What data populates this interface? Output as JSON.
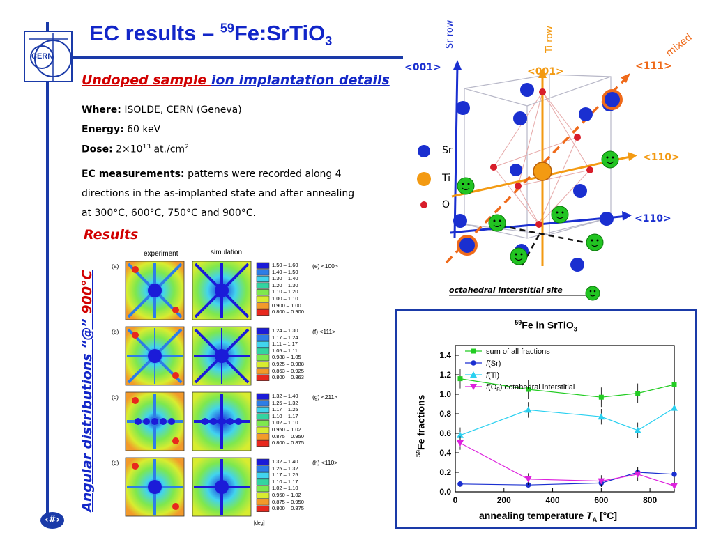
{
  "header": {
    "title_main": "EC results – ",
    "title_sup": "59",
    "title_iso": "Fe:SrTiO",
    "title_sub": "3",
    "logo_text": "CERN"
  },
  "subtitle": {
    "part1": "Undoped sample ",
    "part2": "ion implantation details"
  },
  "info": {
    "where_label": "Where:",
    "where_value": " ISOLDE, CERN (Geneva)",
    "energy_label": "Energy:",
    "energy_value": " 60 keV",
    "dose_label": "Dose:",
    "dose_value": " 2×10",
    "dose_exp": "13",
    "dose_unit": " at./cm",
    "dose_unit_exp": "2",
    "ec_label": "EC measurements:",
    "ec_line1": " patterns were recorded along 4",
    "ec_line2": "directions in the as-implanted state and after annealing",
    "ec_line3": "at 300°C, 600°C, 750°C and 900°C."
  },
  "results_heading": "Results",
  "vertical_label": {
    "part1": "Angular distributions “@” ",
    "part2": "900°C"
  },
  "page_number": "‹#›",
  "crystal": {
    "sr_row": "Sr row",
    "ti_row": "Ti row",
    "mixed": "mixed",
    "dir_001_blue": "<001>",
    "dir_001_orange": "<001>",
    "dir_111": "<111>",
    "dir_110_orange": "<110>",
    "dir_110_blue": "<110>",
    "legend": [
      "Sr",
      "Ti",
      "O"
    ],
    "site_label": "octahedral interstitial site",
    "colors": {
      "sr": "#1a2fd0",
      "ti": "#f39a12",
      "o": "#d81d2a",
      "mixed": "#ef6a1a",
      "site": "#22c422"
    }
  },
  "panels": {
    "col_experiment": "experiment",
    "col_simulation": "simulation",
    "deg_unit": "[deg]",
    "rows": [
      {
        "label": "(a)",
        "dir": "(e) <100>",
        "legend": [
          "1.50 – 1.60",
          "1.40 – 1.50",
          "1.30 – 1.40",
          "1.20 – 1.30",
          "1.10 – 1.20",
          "1.00 – 1.10",
          "0.900 – 1.00",
          "0.800 – 0.900"
        ]
      },
      {
        "label": "(b)",
        "dir": "(f) <111>",
        "legend": [
          "1.24 – 1.30",
          "1.17 – 1.24",
          "1.11 – 1.17",
          "1.05 – 1.11",
          "0.988 – 1.05",
          "0.925 – 0.988",
          "0.863 – 0.925",
          "0.800 – 0.863"
        ]
      },
      {
        "label": "(c)",
        "dir": "(g) <211>",
        "legend": [
          "1.32 – 1.40",
          "1.25 – 1.32",
          "1.17 – 1.25",
          "1.10 – 1.17",
          "1.02 – 1.10",
          "0.950 – 1.02",
          "0.875 – 0.950",
          "0.800 – 0.875"
        ]
      },
      {
        "label": "(d)",
        "dir": "(h) <110>",
        "legend": [
          "1.32 – 1.40",
          "1.25 – 1.32",
          "1.17 – 1.25",
          "1.10 – 1.17",
          "1.02 – 1.10",
          "0.950 – 1.02",
          "0.875 – 0.950",
          "0.800 – 0.875"
        ]
      }
    ],
    "legend_colors": [
      "#1b1bd8",
      "#2d7de6",
      "#42d4ee",
      "#33d4a0",
      "#7ee84e",
      "#d8ec30",
      "#f29a2a",
      "#e8281e"
    ]
  },
  "chart_data": {
    "type": "line",
    "title_sup": "59",
    "title_main": "Fe in SrTiO",
    "title_sub": "3",
    "xlabel": "annealing temperature ",
    "xlabel_T": "T",
    "xlabel_sub": "A",
    "xlabel_unit": " [°C]",
    "ylabel_sup": "59",
    "ylabel": "Fe fractions",
    "xlim": [
      0,
      900
    ],
    "ylim": [
      0.0,
      1.5
    ],
    "xticks": [
      0,
      200,
      400,
      600,
      800
    ],
    "yticks": [
      0.0,
      0.2,
      0.4,
      0.6,
      0.8,
      1.0,
      1.2,
      1.4
    ],
    "series": [
      {
        "name": "sum of all fractions",
        "color": "#22cc22",
        "marker": "square",
        "x": [
          20,
          300,
          600,
          750,
          900
        ],
        "y": [
          1.16,
          1.05,
          0.97,
          1.01,
          1.1
        ],
        "err": [
          0.1,
          0.1,
          0.1,
          0.1,
          0.1
        ]
      },
      {
        "name_pre": "f",
        "name": "(Sr)",
        "color": "#1a2fd0",
        "marker": "circle",
        "x": [
          20,
          300,
          600,
          750,
          900
        ],
        "y": [
          0.08,
          0.07,
          0.09,
          0.2,
          0.18
        ],
        "err": [
          0.03,
          0.03,
          0.04,
          0.05,
          0.04
        ]
      },
      {
        "name_pre": "f",
        "name": "(Ti)",
        "color": "#2ad0f0",
        "marker": "triangle-up",
        "x": [
          20,
          300,
          600,
          750,
          900
        ],
        "y": [
          0.58,
          0.84,
          0.77,
          0.63,
          0.86
        ],
        "err": [
          0.08,
          0.08,
          0.08,
          0.08,
          0.08
        ]
      },
      {
        "name_pre": "f",
        "name": "(O",
        "name_sub": "8",
        "name_post": ") octahedral interstitial",
        "color": "#dd22dd",
        "marker": "triangle-down",
        "x": [
          20,
          300,
          600,
          750,
          900
        ],
        "y": [
          0.5,
          0.13,
          0.11,
          0.18,
          0.06
        ],
        "err": [
          0.07,
          0.06,
          0.06,
          0.07,
          0.05
        ]
      }
    ]
  }
}
